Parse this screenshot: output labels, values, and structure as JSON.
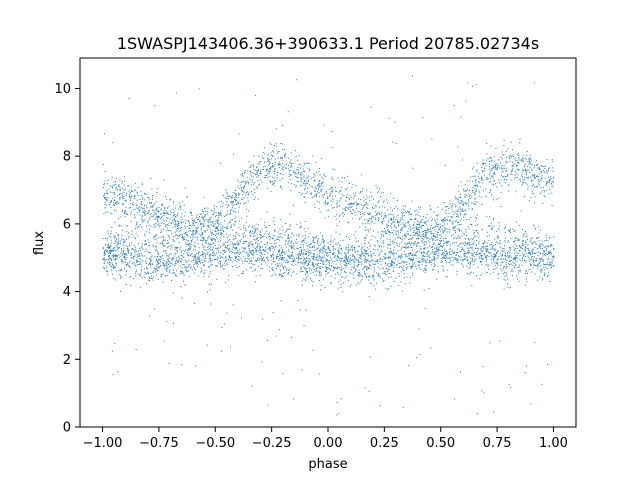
{
  "chart_data": {
    "type": "scatter",
    "title": "1SWASPJ143406.36+390633.1 Period 20785.02734s",
    "xlabel": "phase",
    "ylabel": "flux",
    "xlim": [
      -1.1,
      1.1
    ],
    "ylim": [
      0,
      10.9
    ],
    "grid": false,
    "marker_color": "#1f77b4",
    "xticks": [
      {
        "value": -1.0,
        "label": "−1.00"
      },
      {
        "value": -0.75,
        "label": "−0.75"
      },
      {
        "value": -0.5,
        "label": "−0.50"
      },
      {
        "value": -0.25,
        "label": "−0.25"
      },
      {
        "value": 0.0,
        "label": "0.00"
      },
      {
        "value": 0.25,
        "label": "0.25"
      },
      {
        "value": 0.5,
        "label": "0.50"
      },
      {
        "value": 0.75,
        "label": "0.75"
      },
      {
        "value": 1.0,
        "label": "1.00"
      }
    ],
    "yticks": [
      {
        "value": 0,
        "label": "0"
      },
      {
        "value": 2,
        "label": "2"
      },
      {
        "value": 4,
        "label": "4"
      },
      {
        "value": 6,
        "label": "6"
      },
      {
        "value": 8,
        "label": "8"
      },
      {
        "value": 10,
        "label": "10"
      }
    ],
    "series": [
      {
        "phase": [
          -1.0,
          -0.9,
          -0.8,
          -0.7,
          -0.6,
          -0.5,
          -0.4,
          -0.3,
          -0.2,
          -0.1,
          0.0,
          0.1,
          0.2,
          0.3,
          0.4,
          0.5,
          0.6,
          0.7,
          0.8,
          0.9,
          1.0
        ],
        "flux": [
          6.9,
          6.7,
          6.4,
          6.2,
          6.0,
          5.9,
          6.8,
          7.6,
          7.7,
          7.3,
          6.9,
          6.6,
          6.3,
          6.1,
          5.9,
          5.8,
          6.6,
          7.5,
          7.7,
          7.5,
          7.2
        ],
        "spread": 0.32
      },
      {
        "phase": [
          -1.0,
          -0.9,
          -0.8,
          -0.7,
          -0.6,
          -0.5,
          -0.4,
          -0.3,
          -0.2,
          -0.1,
          0.0,
          0.1,
          0.2,
          0.3,
          0.4,
          0.5,
          0.6,
          0.7,
          0.8,
          0.9,
          1.0
        ],
        "flux": [
          5.1,
          5.0,
          4.8,
          4.9,
          5.0,
          5.1,
          5.2,
          5.1,
          5.0,
          4.9,
          4.9,
          4.8,
          4.8,
          4.9,
          5.0,
          5.1,
          5.1,
          5.1,
          5.0,
          5.0,
          5.0
        ],
        "spread": 0.3
      },
      {
        "phase": [
          -1.0,
          -0.8,
          -0.6,
          -0.4,
          -0.2,
          0.0,
          0.2,
          0.4,
          0.6,
          0.8,
          1.0
        ],
        "flux": [
          5.4,
          5.6,
          5.8,
          5.8,
          5.6,
          5.3,
          5.3,
          5.6,
          5.8,
          5.6,
          5.3
        ],
        "spread": 0.25
      }
    ]
  }
}
